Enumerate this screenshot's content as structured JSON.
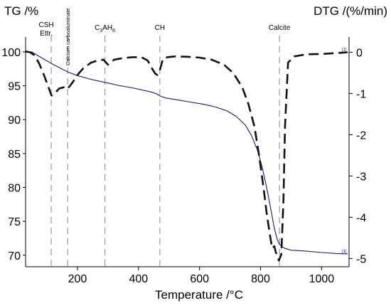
{
  "chart_data": {
    "type": "line",
    "x_label": "Temperature /°C",
    "y_left_label": "TG /%",
    "y_right_label": "DTG /(%/min)",
    "xlim": [
      30,
      1090
    ],
    "y_left_lim": [
      68.3,
      102.2
    ],
    "y_right_lim": [
      -5.2,
      0.37
    ],
    "x_ticks": [
      200,
      400,
      600,
      800,
      1000
    ],
    "y_left_ticks": [
      70,
      75,
      80,
      85,
      90,
      95,
      100
    ],
    "y_right_ticks": [
      0,
      -1,
      -2,
      -3,
      -4,
      -5
    ],
    "annotations": [
      {
        "label": "CSH",
        "label2": "Ettr.",
        "x": 114
      },
      {
        "label": "Calcium carboaluminate",
        "x": 168
      },
      {
        "label_base": "C",
        "sub1": "3",
        "mid": "AH",
        "sub2": "6",
        "x": 290
      },
      {
        "label": "CH",
        "x": 470
      },
      {
        "label": "Calcite",
        "x": 862
      }
    ],
    "series": [
      {
        "axis": "left",
        "style": "solid",
        "color": "#1a1a6e",
        "end_tag": "[1]",
        "x": [
          30,
          50,
          80,
          110,
          140,
          170,
          200,
          240,
          290,
          340,
          380,
          420,
          440,
          460,
          470,
          490,
          530,
          570,
          610,
          650,
          690,
          720,
          750,
          770,
          790,
          805,
          820,
          835,
          845,
          855,
          862,
          870,
          880,
          900,
          950,
          1000,
          1050,
          1085
        ],
        "y": [
          100.0,
          100.0,
          99.2,
          98.4,
          97.7,
          97.0,
          96.5,
          96.0,
          95.5,
          95.0,
          94.7,
          94.3,
          94.1,
          93.8,
          93.5,
          93.2,
          92.9,
          92.6,
          92.3,
          91.9,
          91.3,
          90.5,
          89.2,
          87.7,
          85.5,
          83.0,
          80.0,
          76.5,
          74.0,
          72.3,
          71.6,
          71.3,
          71.0,
          70.75,
          70.6,
          70.4,
          70.25,
          70.2
        ]
      },
      {
        "axis": "right",
        "style": "dashed",
        "color": "#111111",
        "end_tag": "[1]",
        "x": [
          30,
          45,
          60,
          75,
          90,
          105,
          115,
          125,
          140,
          155,
          165,
          175,
          185,
          200,
          220,
          245,
          265,
          285,
          300,
          320,
          350,
          380,
          410,
          430,
          445,
          455,
          462,
          468,
          473,
          480,
          495,
          520,
          560,
          600,
          640,
          680,
          710,
          740,
          760,
          780,
          795,
          810,
          820,
          830,
          838,
          845,
          850,
          855,
          860,
          868,
          875,
          880,
          890,
          910,
          950,
          1000,
          1050,
          1085
        ],
        "y": [
          0.02,
          0.0,
          -0.08,
          -0.28,
          -0.55,
          -0.85,
          -1.05,
          -1.0,
          -0.88,
          -0.85,
          -0.9,
          -0.82,
          -0.72,
          -0.55,
          -0.38,
          -0.25,
          -0.2,
          -0.18,
          -0.3,
          -0.18,
          -0.14,
          -0.12,
          -0.12,
          -0.2,
          -0.4,
          -0.52,
          -0.55,
          -0.48,
          -0.35,
          -0.16,
          -0.12,
          -0.1,
          -0.11,
          -0.13,
          -0.18,
          -0.3,
          -0.5,
          -0.85,
          -1.25,
          -1.8,
          -2.5,
          -3.3,
          -3.9,
          -4.4,
          -4.75,
          -4.7,
          -4.85,
          -4.95,
          -5.05,
          -4.9,
          -3.6,
          -1.8,
          -0.25,
          -0.1,
          -0.05,
          -0.04,
          -0.02,
          0.0
        ]
      }
    ]
  }
}
